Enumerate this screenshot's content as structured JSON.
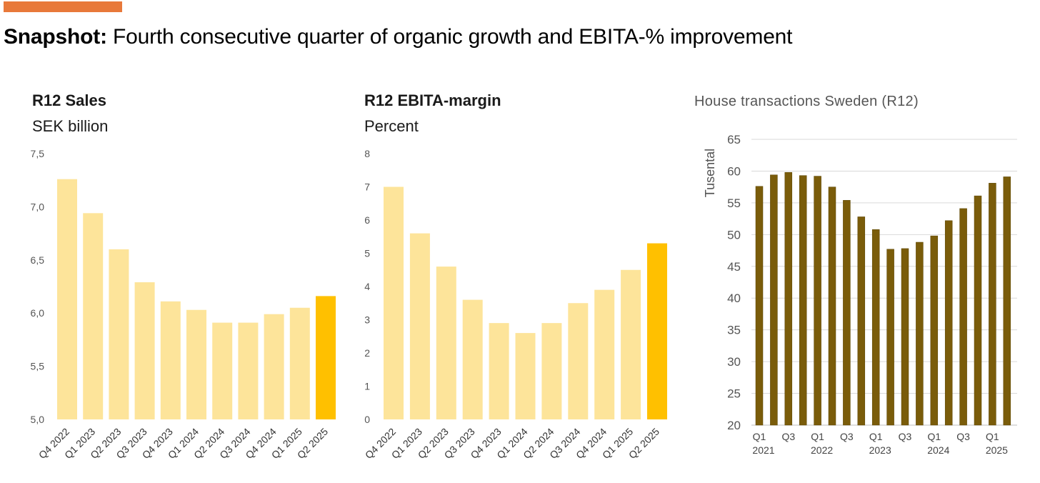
{
  "header": {
    "lead": "Snapshot:",
    "rest": " Fourth consecutive quarter of organic growth and EBITA-% improvement"
  },
  "colors": {
    "accent": "#e8793a",
    "bar_light": "#fde49a",
    "bar_highlight": "#ffc000",
    "bar_dark": "#7a5c0a"
  },
  "chart_data": [
    {
      "type": "bar",
      "title": "R12 Sales",
      "subtitle": "SEK billion",
      "categories": [
        "Q4 2022",
        "Q1 2023",
        "Q2 2023",
        "Q3 2023",
        "Q4 2023",
        "Q1 2024",
        "Q2 2024",
        "Q3 2024",
        "Q4 2024",
        "Q1 2025",
        "Q2 2025"
      ],
      "values": [
        7.26,
        6.94,
        6.6,
        6.29,
        6.11,
        6.03,
        5.91,
        5.91,
        5.99,
        6.05,
        6.16
      ],
      "highlight_index": 10,
      "ylim": [
        5.0,
        7.5
      ],
      "yticks": [
        "5,0",
        "5,5",
        "6,0",
        "6,5",
        "7,0",
        "7,5"
      ],
      "ytick_values": [
        5.0,
        5.5,
        6.0,
        6.5,
        7.0,
        7.5
      ],
      "grid": false
    },
    {
      "type": "bar",
      "title": "R12 EBITA-margin",
      "subtitle": "Percent",
      "categories": [
        "Q4 2022",
        "Q1 2023",
        "Q2 2023",
        "Q3 2023",
        "Q4 2023",
        "Q1 2024",
        "Q2 2024",
        "Q3 2024",
        "Q4 2024",
        "Q1 2025",
        "Q2 2025"
      ],
      "values": [
        7.0,
        5.6,
        4.6,
        3.6,
        2.9,
        2.6,
        2.9,
        3.5,
        3.9,
        4.5,
        5.3
      ],
      "highlight_index": 10,
      "ylim": [
        0,
        8
      ],
      "yticks": [
        "0",
        "1",
        "2",
        "3",
        "4",
        "5",
        "6",
        "7",
        "8"
      ],
      "ytick_values": [
        0,
        1,
        2,
        3,
        4,
        5,
        6,
        7,
        8
      ],
      "grid": false
    },
    {
      "type": "bar",
      "title": "House transactions Sweden (R12)",
      "ylabel": "Tusental",
      "categories": [
        "Q1 2021",
        "Q2 2021",
        "Q3 2021",
        "Q4 2021",
        "Q1 2022",
        "Q2 2022",
        "Q3 2022",
        "Q4 2022",
        "Q1 2023",
        "Q2 2023",
        "Q3 2023",
        "Q4 2023",
        "Q1 2024",
        "Q2 2024",
        "Q3 2024",
        "Q4 2024",
        "Q1 2025",
        "Q2 2025"
      ],
      "values": [
        57.6,
        59.4,
        59.8,
        59.3,
        59.2,
        57.5,
        55.4,
        52.8,
        50.8,
        47.7,
        47.8,
        48.8,
        49.8,
        52.2,
        54.1,
        56.1,
        58.1,
        59.1
      ],
      "x_tick_labels": [
        {
          "index": 0,
          "quarter": "Q1",
          "year": "2021"
        },
        {
          "index": 2,
          "quarter": "Q3",
          "year": ""
        },
        {
          "index": 4,
          "quarter": "Q1",
          "year": "2022"
        },
        {
          "index": 6,
          "quarter": "Q3",
          "year": ""
        },
        {
          "index": 8,
          "quarter": "Q1",
          "year": "2023"
        },
        {
          "index": 10,
          "quarter": "Q3",
          "year": ""
        },
        {
          "index": 12,
          "quarter": "Q1",
          "year": "2024"
        },
        {
          "index": 14,
          "quarter": "Q3",
          "year": ""
        },
        {
          "index": 16,
          "quarter": "Q1",
          "year": "2025"
        }
      ],
      "ylim": [
        20,
        65
      ],
      "yticks": [
        "20",
        "25",
        "30",
        "35",
        "40",
        "45",
        "50",
        "55",
        "60",
        "65"
      ],
      "ytick_values": [
        20,
        25,
        30,
        35,
        40,
        45,
        50,
        55,
        60,
        65
      ],
      "grid": true
    }
  ]
}
